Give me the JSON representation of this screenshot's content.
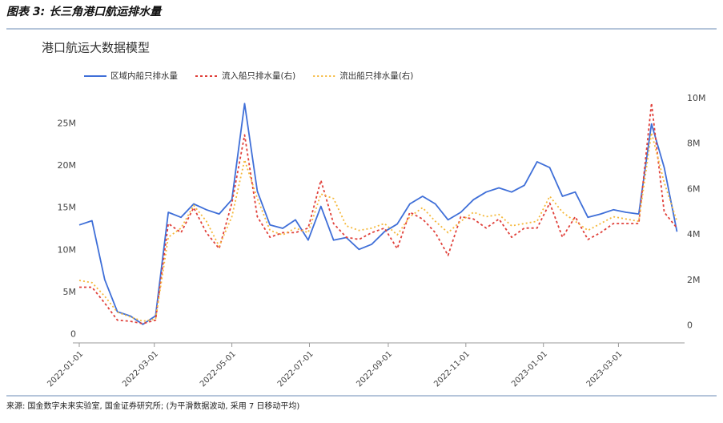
{
  "header": {
    "title": "图表 3:  长三角港口航运排水量"
  },
  "chart_data": {
    "type": "line",
    "title": "港口航运大数据模型",
    "x": [
      "2022-01-01",
      "2022-01-11",
      "2022-01-21",
      "2022-01-31",
      "2022-02-10",
      "2022-02-20",
      "2022-03-02",
      "2022-03-12",
      "2022-03-22",
      "2022-04-01",
      "2022-04-11",
      "2022-04-21",
      "2022-05-01",
      "2022-05-11",
      "2022-05-21",
      "2022-05-31",
      "2022-06-10",
      "2022-06-20",
      "2022-06-30",
      "2022-07-10",
      "2022-07-20",
      "2022-07-30",
      "2022-08-09",
      "2022-08-19",
      "2022-08-29",
      "2022-09-08",
      "2022-09-18",
      "2022-09-28",
      "2022-10-08",
      "2022-10-18",
      "2022-10-28",
      "2022-11-07",
      "2022-11-17",
      "2022-11-27",
      "2022-12-07",
      "2022-12-17",
      "2022-12-27",
      "2023-01-06",
      "2023-01-16",
      "2023-01-26",
      "2023-02-05",
      "2023-02-15",
      "2023-02-25",
      "2023-03-07",
      "2023-03-17",
      "2023-03-27",
      "2023-04-06",
      "2023-04-16"
    ],
    "xlim": [
      "2022-01-01",
      "2023-04-22"
    ],
    "xticks": [
      "2022-01-01",
      "2022-03-01",
      "2022-05-01",
      "2022-07-01",
      "2022-09-01",
      "2022-11-01",
      "2023-01-01",
      "2023-03-01"
    ],
    "ylim": [
      -1,
      28
    ],
    "yticks": [
      0,
      {
        "value": 5,
        "label": "5M"
      },
      {
        "value": 10,
        "label": "10M"
      },
      {
        "value": 15,
        "label": "15M"
      },
      {
        "value": 20,
        "label": "20M"
      },
      {
        "value": 25,
        "label": "25M"
      }
    ],
    "y2lim": [
      -0.75,
      10
    ],
    "y2ticks": [
      0,
      {
        "value": 2,
        "label": "2M"
      },
      {
        "value": 4,
        "label": "4M"
      },
      {
        "value": 6,
        "label": "6M"
      },
      {
        "value": 8,
        "label": "8M"
      },
      {
        "value": 10,
        "label": "10M"
      }
    ],
    "series": [
      {
        "name": "区域内船只排水量",
        "color": "#3f6fd8",
        "values": [
          13,
          13.5,
          6.5,
          2.7,
          2.2,
          1.2,
          2.2,
          14.5,
          13.9,
          15.5,
          14.8,
          14.3,
          16,
          27.4,
          17,
          13,
          12.6,
          13.6,
          11.2,
          15.2,
          11.2,
          11.5,
          10.1,
          10.7,
          12.2,
          13.1,
          15.5,
          16.4,
          15.5,
          13.6,
          14.5,
          16,
          16.9,
          17.4,
          16.9,
          17.7,
          20.5,
          19.8,
          16.4,
          16.9,
          13.9,
          14.3,
          14.8,
          14.5,
          14.3,
          25,
          19.8,
          12.2
        ]
      },
      {
        "name": "流入船只排水量(右)",
        "color": "#e0403a",
        "axis": "y2",
        "values": [
          1.7,
          1.7,
          1,
          0.25,
          0.2,
          0.1,
          0.25,
          4.5,
          4.1,
          5.2,
          4.1,
          3.4,
          5.4,
          8.4,
          4.8,
          3.9,
          4.1,
          4.1,
          4.3,
          6.4,
          4.5,
          3.9,
          3.8,
          4.1,
          4.3,
          3.4,
          5,
          4.7,
          4.1,
          3.1,
          4.8,
          4.7,
          4.3,
          4.7,
          3.9,
          4.3,
          4.3,
          5.4,
          3.9,
          4.8,
          3.8,
          4.1,
          4.5,
          4.5,
          4.5,
          9.8,
          5,
          4.3
        ]
      },
      {
        "name": "流出船只排水量(右)",
        "color": "#f5b83a",
        "axis": "y2",
        "values": [
          2,
          1.9,
          1.3,
          0.6,
          0.4,
          0.2,
          0.3,
          3.9,
          4.3,
          5.3,
          4.6,
          3.5,
          4.8,
          7.3,
          5.6,
          4.2,
          4,
          4.3,
          4.1,
          5.8,
          5.6,
          4.4,
          4.2,
          4.3,
          4.5,
          4,
          4.8,
          5.2,
          4.6,
          4.1,
          4.6,
          5,
          4.8,
          4.9,
          4.4,
          4.5,
          4.6,
          5.7,
          5,
          4.6,
          4.2,
          4.5,
          4.8,
          4.7,
          4.6,
          8.5,
          6.3,
          4.6
        ]
      }
    ]
  },
  "footer": {
    "source": "来源:  国金数字未来实验室, 国金证券研究所; (为平滑数据波动, 采用 7 日移动平均)"
  }
}
